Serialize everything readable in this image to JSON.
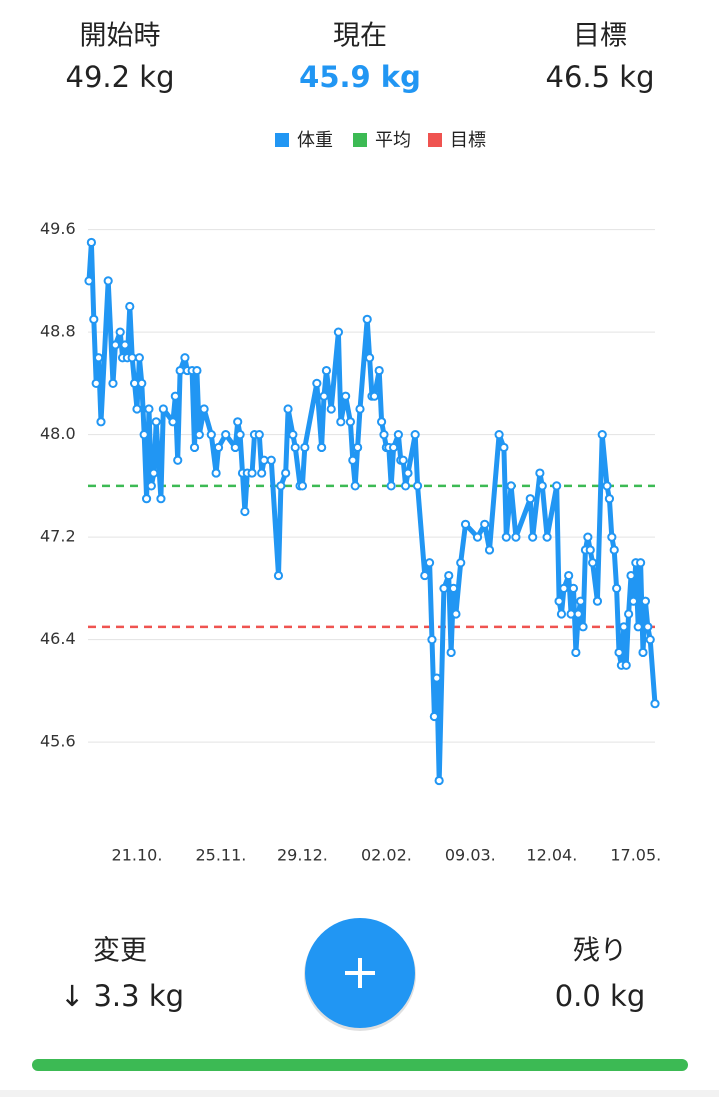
{
  "header": {
    "start": {
      "label": "開始時",
      "value": "49.2 kg"
    },
    "current": {
      "label": "現在",
      "value": "45.9 kg"
    },
    "goal": {
      "label": "目標",
      "value": "46.5 kg"
    }
  },
  "chart_data": {
    "type": "line",
    "series": [
      {
        "name": "体重",
        "color": "#2196f3",
        "x": [
          0,
          1,
          2,
          3,
          4,
          5,
          8,
          10,
          11,
          13,
          14,
          15,
          16,
          17,
          18,
          19,
          20,
          21,
          22,
          23,
          24,
          25,
          26,
          27,
          28,
          30,
          31,
          35,
          36,
          37,
          38,
          40,
          41,
          43,
          44,
          45,
          46,
          48,
          51,
          53,
          54,
          57,
          61,
          62,
          63,
          64,
          65,
          66,
          68,
          69,
          71,
          72,
          73,
          76,
          79,
          80,
          82,
          83,
          85,
          86,
          88,
          89,
          90,
          95,
          97,
          98,
          99,
          101,
          104,
          105,
          107,
          109,
          110,
          111,
          112,
          113,
          116,
          117,
          118,
          119,
          121,
          122,
          123,
          124,
          125,
          126,
          127,
          129,
          130,
          131,
          132,
          133,
          136,
          137,
          140,
          142,
          143,
          144,
          145,
          146,
          148,
          150,
          151,
          152,
          153,
          155,
          157,
          162,
          165,
          167,
          171,
          173,
          174,
          176,
          178,
          184,
          185,
          188,
          189,
          191,
          195,
          196,
          197,
          198,
          200,
          201,
          202,
          203,
          204,
          205,
          206,
          207,
          208,
          209,
          210,
          212,
          214,
          216,
          217,
          218,
          219,
          220,
          221,
          222,
          223,
          224,
          225,
          226,
          227,
          228,
          229,
          230,
          231,
          232,
          233,
          234,
          236
        ],
        "values": [
          49.2,
          49.5,
          48.9,
          48.4,
          48.6,
          48.1,
          49.2,
          48.4,
          48.7,
          48.8,
          48.6,
          48.7,
          48.6,
          49.0,
          48.6,
          48.4,
          48.2,
          48.6,
          48.4,
          48.0,
          47.5,
          48.2,
          47.6,
          47.7,
          48.1,
          47.5,
          48.2,
          48.1,
          48.3,
          47.8,
          48.5,
          48.6,
          48.5,
          48.5,
          47.9,
          48.5,
          48.0,
          48.2,
          48.0,
          47.7,
          47.9,
          48.0,
          47.9,
          48.1,
          48.0,
          47.7,
          47.4,
          47.7,
          47.7,
          48.0,
          48.0,
          47.7,
          47.8,
          47.8,
          46.9,
          47.6,
          47.7,
          48.2,
          48.0,
          47.9,
          47.6,
          47.6,
          47.9,
          48.4,
          47.9,
          48.3,
          48.5,
          48.2,
          48.8,
          48.1,
          48.3,
          48.1,
          47.8,
          47.6,
          47.9,
          48.2,
          48.9,
          48.6,
          48.3,
          48.3,
          48.5,
          48.1,
          48.0,
          47.9,
          47.9,
          47.6,
          47.9,
          48.0,
          47.8,
          47.8,
          47.6,
          47.7,
          48.0,
          47.6,
          46.9,
          47.0,
          46.4,
          45.8,
          46.1,
          45.3,
          46.8,
          46.9,
          46.3,
          46.8,
          46.6,
          47.0,
          47.3,
          47.2,
          47.3,
          47.1,
          48.0,
          47.9,
          47.2,
          47.6,
          47.2,
          47.5,
          47.2,
          47.7,
          47.6,
          47.2,
          47.6,
          46.7,
          46.6,
          46.8,
          46.9,
          46.6,
          46.8,
          46.3,
          46.6,
          46.7,
          46.5,
          47.1,
          47.2,
          47.1,
          47.0,
          46.7,
          48.0,
          47.6,
          47.5,
          47.2,
          47.1,
          46.8,
          46.3,
          46.2,
          46.5,
          46.2,
          46.6,
          46.9,
          46.7,
          47.0,
          46.5,
          47.0,
          46.3,
          46.7,
          46.5,
          46.4,
          45.9
        ]
      }
    ],
    "average": {
      "name": "平均",
      "color": "#3cba54",
      "value": 47.6
    },
    "target": {
      "name": "目標",
      "color": "#ef5350",
      "value": 46.5
    },
    "xlim": [
      0,
      236
    ],
    "xticks": [
      {
        "value": 20,
        "label": "21.10."
      },
      {
        "value": 55,
        "label": "25.11."
      },
      {
        "value": 89,
        "label": "29.12."
      },
      {
        "value": 124,
        "label": "02.02."
      },
      {
        "value": 159,
        "label": "09.03."
      },
      {
        "value": 193,
        "label": "12.04."
      },
      {
        "value": 228,
        "label": "17.05."
      }
    ],
    "ylim": [
      45.0,
      49.8
    ],
    "yticks": [
      45.6,
      46.4,
      47.2,
      {
        "value": 48.0,
        "label": "48.0"
      },
      48.8,
      49.6
    ],
    "grid": true
  },
  "footer": {
    "change": {
      "label": "変更",
      "value": "↓ 3.3 kg"
    },
    "remaining": {
      "label": "残り",
      "value": "0.0 kg"
    }
  }
}
